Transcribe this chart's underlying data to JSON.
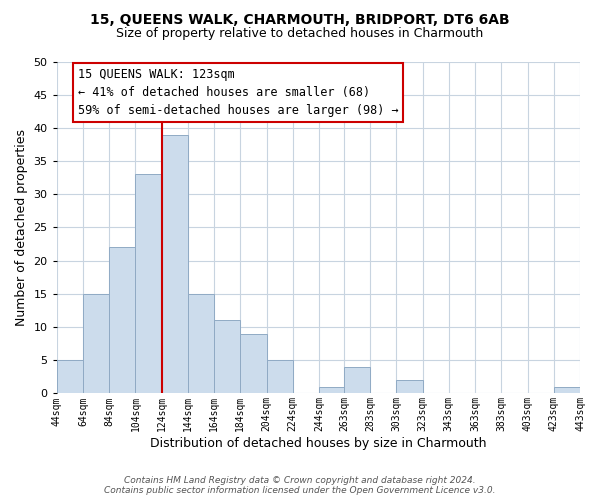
{
  "title": "15, QUEENS WALK, CHARMOUTH, BRIDPORT, DT6 6AB",
  "subtitle": "Size of property relative to detached houses in Charmouth",
  "bar_color": "#ccdcec",
  "bar_edge_color": "#90aac4",
  "xlabel": "Distribution of detached houses by size in Charmouth",
  "ylabel": "Number of detached properties",
  "bins": [
    44,
    64,
    84,
    104,
    124,
    144,
    164,
    184,
    204,
    224,
    244,
    263,
    283,
    303,
    323,
    343,
    363,
    383,
    403,
    423,
    443
  ],
  "counts": [
    5,
    15,
    22,
    33,
    39,
    15,
    11,
    9,
    5,
    0,
    1,
    4,
    0,
    2,
    0,
    0,
    0,
    0,
    0,
    1
  ],
  "tick_labels": [
    "44sqm",
    "64sqm",
    "84sqm",
    "104sqm",
    "124sqm",
    "144sqm",
    "164sqm",
    "184sqm",
    "204sqm",
    "224sqm",
    "244sqm",
    "263sqm",
    "283sqm",
    "303sqm",
    "323sqm",
    "343sqm",
    "363sqm",
    "383sqm",
    "403sqm",
    "423sqm",
    "443sqm"
  ],
  "vline_x": 124,
  "vline_color": "#cc0000",
  "ylim": [
    0,
    50
  ],
  "yticks": [
    0,
    5,
    10,
    15,
    20,
    25,
    30,
    35,
    40,
    45,
    50
  ],
  "annotation_title": "15 QUEENS WALK: 123sqm",
  "annotation_line1": "← 41% of detached houses are smaller (68)",
  "annotation_line2": "59% of semi-detached houses are larger (98) →",
  "annotation_box_color": "#ffffff",
  "annotation_box_edge": "#cc0000",
  "footnote1": "Contains HM Land Registry data © Crown copyright and database right 2024.",
  "footnote2": "Contains public sector information licensed under the Open Government Licence v3.0.",
  "background_color": "#ffffff",
  "grid_color": "#c8d4e0"
}
